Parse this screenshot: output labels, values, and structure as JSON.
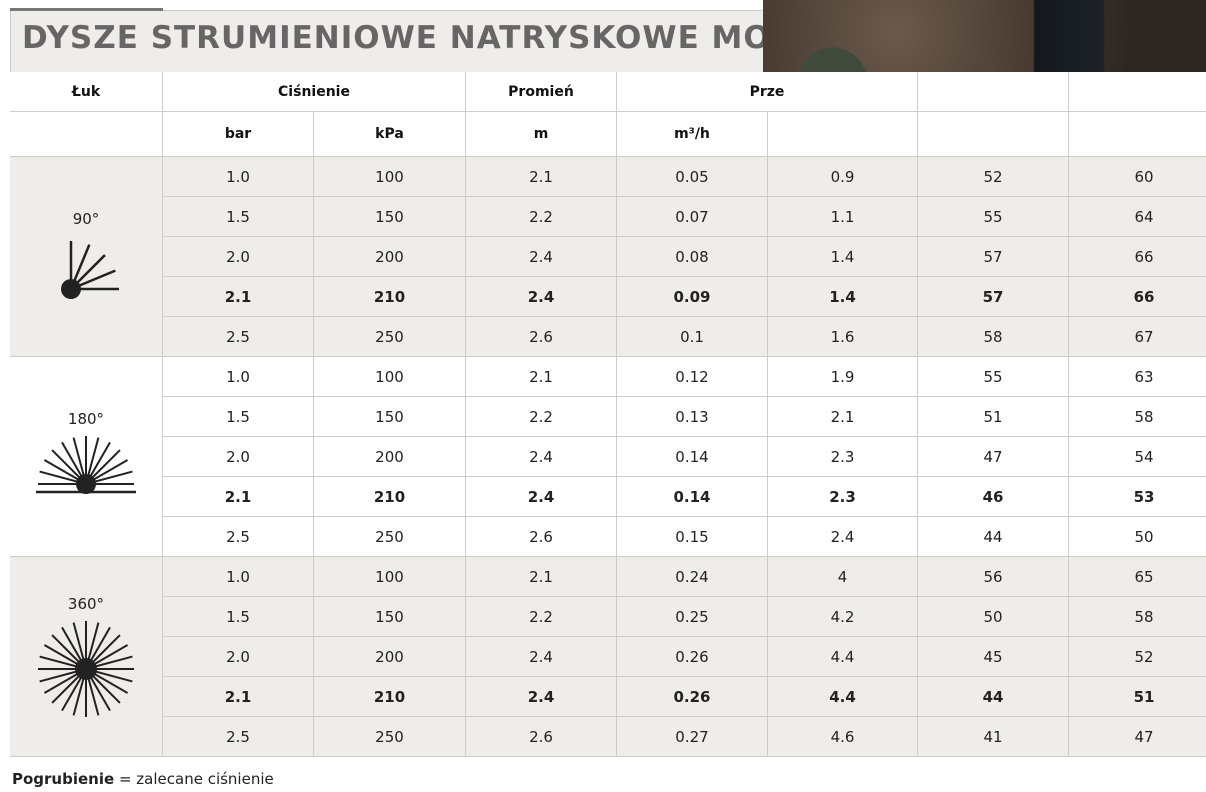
{
  "title": "DYSZE STRUMIENIOWE NATRYSKOWE MODE",
  "table": {
    "headers": [
      "Łuk",
      "Ciśnienie",
      "Promień",
      "Prze"
    ],
    "units": [
      "bar",
      "kPa",
      "m",
      "m³/h"
    ],
    "groups": [
      {
        "arc": "90°",
        "emphasized_row": 3,
        "rows": [
          [
            "1.0",
            "100",
            "2.1",
            "0.05",
            "0.9",
            "52",
            "60"
          ],
          [
            "1.5",
            "150",
            "2.2",
            "0.07",
            "1.1",
            "55",
            "64"
          ],
          [
            "2.0",
            "200",
            "2.4",
            "0.08",
            "1.4",
            "57",
            "66"
          ],
          [
            "2.1",
            "210",
            "2.4",
            "0.09",
            "1.4",
            "57",
            "66"
          ],
          [
            "2.5",
            "250",
            "2.6",
            "0.1",
            "1.6",
            "58",
            "67"
          ]
        ]
      },
      {
        "arc": "180°",
        "emphasized_row": 3,
        "rows": [
          [
            "1.0",
            "100",
            "2.1",
            "0.12",
            "1.9",
            "55",
            "63"
          ],
          [
            "1.5",
            "150",
            "2.2",
            "0.13",
            "2.1",
            "51",
            "58"
          ],
          [
            "2.0",
            "200",
            "2.4",
            "0.14",
            "2.3",
            "47",
            "54"
          ],
          [
            "2.1",
            "210",
            "2.4",
            "0.14",
            "2.3",
            "46",
            "53"
          ],
          [
            "2.5",
            "250",
            "2.6",
            "0.15",
            "2.4",
            "44",
            "50"
          ]
        ]
      },
      {
        "arc": "360°",
        "emphasized_row": 3,
        "rows": [
          [
            "1.0",
            "100",
            "2.1",
            "0.24",
            "4",
            "56",
            "65"
          ],
          [
            "1.5",
            "150",
            "2.2",
            "0.25",
            "4.2",
            "50",
            "58"
          ],
          [
            "2.0",
            "200",
            "2.4",
            "0.26",
            "4.4",
            "45",
            "52"
          ],
          [
            "2.1",
            "210",
            "2.4",
            "0.26",
            "4.4",
            "44",
            "51"
          ],
          [
            "2.5",
            "250",
            "2.6",
            "0.27",
            "4.6",
            "41",
            "47"
          ]
        ]
      }
    ]
  },
  "legend": {
    "term": "Pogrubienie",
    "text": "= zalecane ciśnienie"
  }
}
